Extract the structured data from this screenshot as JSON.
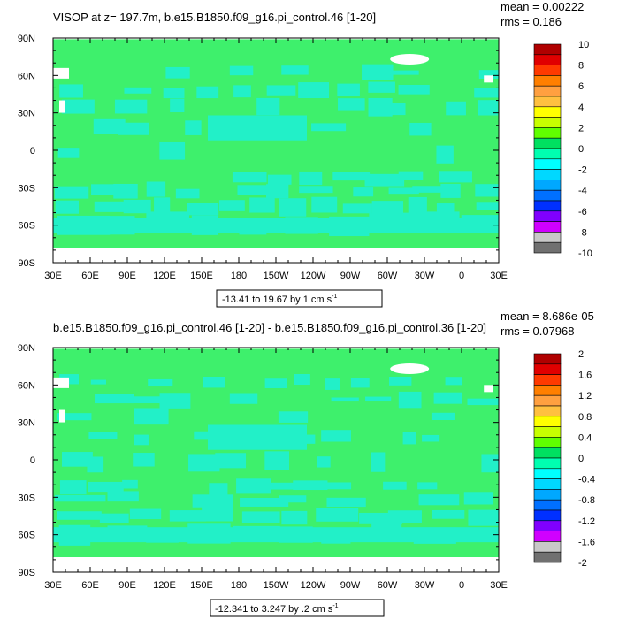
{
  "chart_data": [
    {
      "type": "heatmap",
      "title": "VISOP at z= 197.7m, b.e15.B1850.f09_g16.pi_control.46 [1-20]",
      "stats": {
        "mean": "mean = 0.00222",
        "rms": "rms = 0.186"
      },
      "range_label": "-13.41 to 19.67 by 1 cm s",
      "range_unit_sup": "-1",
      "x_ticks": [
        "30E",
        "60E",
        "90E",
        "120E",
        "150E",
        "180",
        "150W",
        "120W",
        "90W",
        "60W",
        "30W",
        "0",
        "30E"
      ],
      "y_ticks": [
        "90N",
        "60N",
        "30N",
        "0",
        "30S",
        "60S",
        "90S"
      ],
      "xlim": [
        30,
        390
      ],
      "ylim": [
        -90,
        90
      ],
      "colorbar": {
        "labels": [
          "10",
          "8",
          "6",
          "4",
          "2",
          "0",
          "-2",
          "-4",
          "-6",
          "-8",
          "-10"
        ],
        "colors": [
          "#b00000",
          "#e00000",
          "#ff3a00",
          "#ff7f00",
          "#ffa040",
          "#ffc040",
          "#ffff00",
          "#c8ff00",
          "#60ff00",
          "#00e060",
          "#00ffb0",
          "#00ffff",
          "#00d8ff",
          "#00a8ff",
          "#0070ff",
          "#0030ff",
          "#8000ff",
          "#d000ff",
          "#c8c8c8",
          "#707070"
        ]
      },
      "field": {
        "background": "#3ef06c",
        "dominant": "#3ef06c",
        "secondary": "#22f0c8"
      }
    },
    {
      "type": "heatmap",
      "title": "b.e15.B1850.f09_g16.pi_control.46 [1-20] - b.e15.B1850.f09_g16.pi_control.36 [1-20]",
      "stats": {
        "mean": "mean = 8.686e-05",
        "rms": "rms = 0.07968"
      },
      "range_label": "-12.341 to 3.247 by .2 cm s",
      "range_unit_sup": "-1",
      "x_ticks": [
        "30E",
        "60E",
        "90E",
        "120E",
        "150E",
        "180",
        "150W",
        "120W",
        "90W",
        "60W",
        "30W",
        "0",
        "30E"
      ],
      "y_ticks": [
        "90N",
        "60N",
        "30N",
        "0",
        "30S",
        "60S",
        "90S"
      ],
      "xlim": [
        30,
        390
      ],
      "ylim": [
        -90,
        90
      ],
      "colorbar": {
        "labels": [
          "2",
          "1.6",
          "1.2",
          "0.8",
          "0.4",
          "0",
          "-0.4",
          "-0.8",
          "-1.2",
          "-1.6",
          "-2"
        ],
        "colors": [
          "#b00000",
          "#e00000",
          "#ff3a00",
          "#ff7f00",
          "#ffa040",
          "#ffc040",
          "#ffff00",
          "#c8ff00",
          "#60ff00",
          "#00e060",
          "#00ffb0",
          "#00ffff",
          "#00d8ff",
          "#00a8ff",
          "#0070ff",
          "#0030ff",
          "#8000ff",
          "#d000ff",
          "#c8c8c8",
          "#707070"
        ]
      },
      "field": {
        "background": "#3ef06c",
        "dominant": "#3ef06c",
        "secondary": "#22f0c8"
      }
    }
  ]
}
